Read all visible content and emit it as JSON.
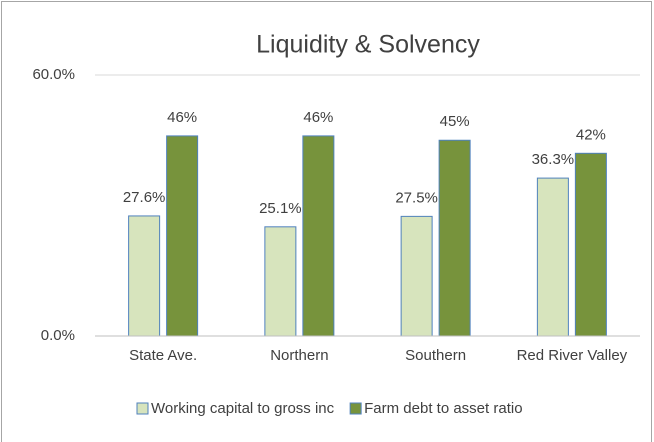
{
  "chart_data": {
    "type": "bar",
    "title": "Liquidity & Solvency",
    "categories": [
      "State Ave.",
      "Northern",
      "Southern",
      "Red River Valley"
    ],
    "series": [
      {
        "name": "Working capital to gross inc",
        "color": "#d7e4bd",
        "values": [
          27.6,
          25.1,
          27.5,
          36.3
        ],
        "value_labels": [
          "27.6%",
          "25.1%",
          "27.5%",
          "36.3%"
        ]
      },
      {
        "name": "Farm debt to asset ratio",
        "color": "#77933c",
        "values": [
          46,
          46,
          45,
          42
        ],
        "value_labels": [
          "46%",
          "46%",
          "45%",
          "42%"
        ]
      }
    ],
    "ylim": [
      0,
      60
    ],
    "yticks": [
      {
        "value": 0,
        "label": "0.0%"
      },
      {
        "value": 60,
        "label": "60.0%"
      }
    ],
    "grid": true,
    "legend": "bottom"
  }
}
